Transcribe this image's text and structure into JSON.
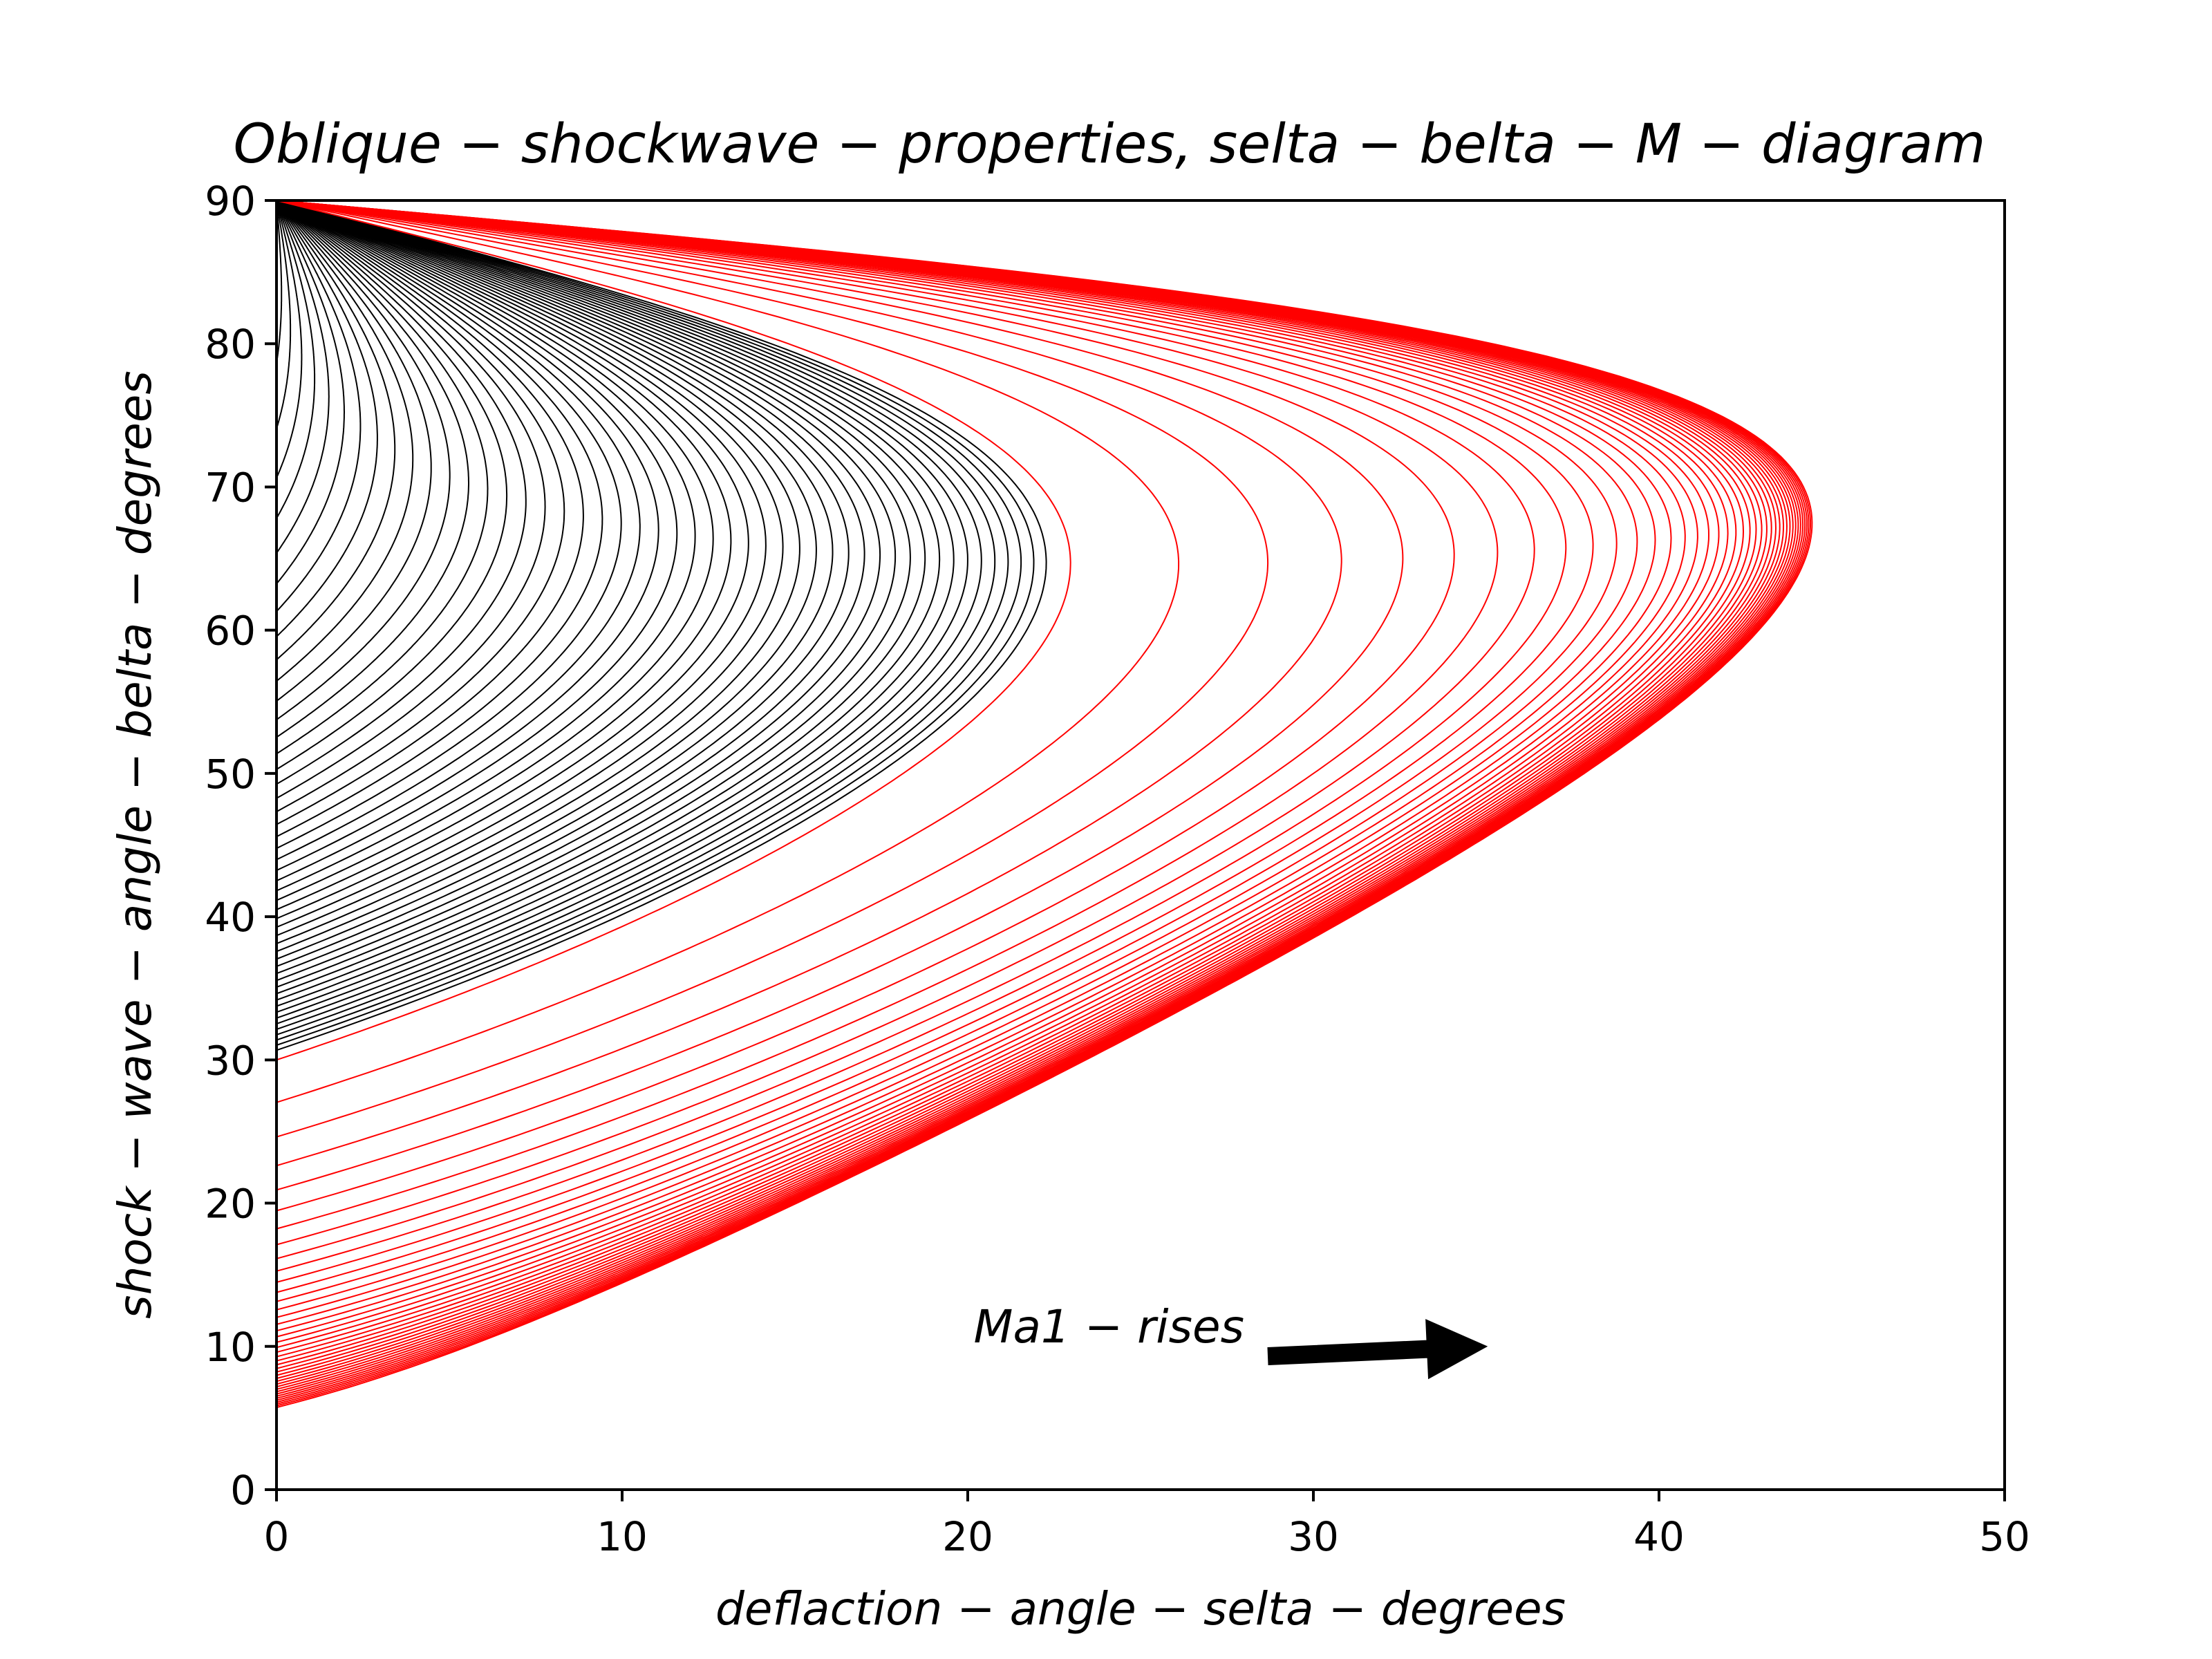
{
  "chart_data": {
    "type": "line",
    "title": "Oblique − shockwave − properties, selta − belta − M − diagram",
    "xlabel": "deflaction − angle − selta − degrees",
    "ylabel": "shock − wave − angle − belta − degrees",
    "xlim": [
      0,
      50
    ],
    "ylim": [
      0,
      90
    ],
    "xticks": [
      "0",
      "10",
      "20",
      "30",
      "40",
      "50"
    ],
    "yticks": [
      "0",
      "10",
      "20",
      "30",
      "40",
      "50",
      "60",
      "70",
      "80",
      "90"
    ],
    "grid": false,
    "legend": "none",
    "gamma": 1.4,
    "subsonic_series": {
      "color": "#000000",
      "mach_numbers": [
        1.02,
        1.04,
        1.06,
        1.08,
        1.1,
        1.12,
        1.14,
        1.16,
        1.18,
        1.2,
        1.22,
        1.24,
        1.26,
        1.28,
        1.3,
        1.32,
        1.34,
        1.36,
        1.38,
        1.4,
        1.42,
        1.44,
        1.46,
        1.48,
        1.5,
        1.52,
        1.54,
        1.56,
        1.58,
        1.6,
        1.62,
        1.64,
        1.66,
        1.68,
        1.7,
        1.72,
        1.74,
        1.76,
        1.78,
        1.8,
        1.82,
        1.84,
        1.86,
        1.88,
        1.9,
        1.92,
        1.94,
        1.96
      ]
    },
    "supersonic_series": {
      "color": "#ff0000",
      "mach_numbers": [
        2.0,
        2.2,
        2.4,
        2.6,
        2.8,
        3.0,
        3.2,
        3.4,
        3.6,
        3.8,
        4.0,
        4.2,
        4.4,
        4.6,
        4.8,
        5.0,
        5.2,
        5.4,
        5.6,
        5.8,
        6.0,
        6.2,
        6.4,
        6.6,
        6.8,
        7.0,
        7.2,
        7.4,
        7.6,
        7.8,
        8.0,
        8.2,
        8.4,
        8.6,
        8.8,
        9.0,
        9.2,
        9.4,
        9.6,
        9.8,
        10.0
      ]
    },
    "annotation": {
      "text": "Ma1 − rises",
      "arrow_tip": [
        35,
        10
      ]
    }
  }
}
